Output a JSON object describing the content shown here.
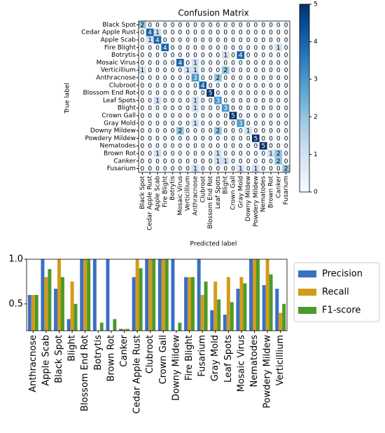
{
  "chart_data": [
    {
      "type": "heatmap",
      "title": "Confusion Matrix",
      "x_label": "Predicted label",
      "y_label": "True label",
      "categories": [
        "Black Spot",
        "Cedar Apple Rust",
        "Apple Scab",
        "Fire Blight",
        "Botrytis",
        "Mosaic Virus",
        "Verticillium",
        "Anthracnose",
        "Clubroot",
        "Blossom End Rot",
        "Leaf Spots",
        "Blight",
        "Crown Gall",
        "Gray Mold",
        "Downy Mildew",
        "Powdery Mildew",
        "Nematodes",
        "Brown Rot",
        "Canker",
        "Fusarium"
      ],
      "values": [
        [
          2,
          0,
          0,
          0,
          0,
          0,
          0,
          0,
          0,
          0,
          0,
          0,
          0,
          0,
          0,
          0,
          0,
          0,
          0,
          0
        ],
        [
          0,
          4,
          1,
          0,
          0,
          0,
          0,
          0,
          0,
          0,
          0,
          0,
          0,
          0,
          0,
          0,
          0,
          0,
          0,
          0
        ],
        [
          0,
          1,
          4,
          0,
          0,
          0,
          0,
          0,
          0,
          0,
          0,
          0,
          0,
          0,
          0,
          0,
          0,
          0,
          0,
          0
        ],
        [
          0,
          0,
          0,
          4,
          0,
          0,
          0,
          0,
          0,
          0,
          0,
          0,
          0,
          0,
          0,
          0,
          0,
          0,
          1,
          0
        ],
        [
          0,
          0,
          0,
          0,
          0,
          0,
          0,
          0,
          0,
          0,
          0,
          1,
          0,
          4,
          0,
          0,
          0,
          0,
          0,
          0
        ],
        [
          0,
          0,
          0,
          0,
          0,
          4,
          0,
          1,
          0,
          0,
          0,
          0,
          0,
          0,
          0,
          0,
          0,
          0,
          0,
          0
        ],
        [
          1,
          0,
          0,
          0,
          0,
          0,
          1,
          1,
          0,
          0,
          0,
          2,
          0,
          0,
          0,
          0,
          0,
          0,
          0,
          0
        ],
        [
          0,
          0,
          0,
          0,
          0,
          0,
          0,
          3,
          0,
          0,
          2,
          0,
          0,
          0,
          0,
          0,
          0,
          0,
          0,
          0
        ],
        [
          0,
          0,
          0,
          0,
          0,
          0,
          0,
          0,
          4,
          0,
          0,
          0,
          0,
          0,
          0,
          0,
          0,
          0,
          0,
          0
        ],
        [
          0,
          0,
          0,
          0,
          0,
          0,
          0,
          0,
          0,
          5,
          0,
          0,
          0,
          0,
          0,
          0,
          0,
          0,
          0,
          0
        ],
        [
          0,
          0,
          1,
          0,
          0,
          0,
          0,
          1,
          0,
          0,
          3,
          0,
          0,
          0,
          0,
          0,
          0,
          0,
          0,
          0
        ],
        [
          0,
          0,
          0,
          0,
          0,
          0,
          0,
          1,
          0,
          0,
          0,
          3,
          0,
          0,
          0,
          0,
          0,
          0,
          0,
          0
        ],
        [
          0,
          0,
          0,
          0,
          0,
          0,
          0,
          0,
          0,
          0,
          0,
          0,
          5,
          0,
          0,
          0,
          0,
          0,
          0,
          0
        ],
        [
          0,
          0,
          0,
          0,
          0,
          0,
          0,
          1,
          0,
          0,
          0,
          0,
          0,
          3,
          0,
          0,
          0,
          0,
          0,
          0
        ],
        [
          0,
          0,
          0,
          0,
          0,
          2,
          0,
          0,
          0,
          0,
          2,
          0,
          0,
          0,
          1,
          0,
          0,
          0,
          0,
          0
        ],
        [
          0,
          0,
          0,
          0,
          0,
          0,
          0,
          0,
          0,
          0,
          0,
          0,
          0,
          0,
          0,
          5,
          0,
          0,
          0,
          0
        ],
        [
          0,
          0,
          0,
          0,
          0,
          0,
          0,
          0,
          0,
          0,
          0,
          0,
          0,
          0,
          0,
          0,
          5,
          0,
          0,
          0
        ],
        [
          0,
          0,
          1,
          0,
          0,
          0,
          0,
          0,
          0,
          0,
          1,
          0,
          0,
          0,
          0,
          0,
          0,
          1,
          2,
          0
        ],
        [
          0,
          0,
          0,
          0,
          0,
          0,
          0,
          0,
          0,
          0,
          1,
          1,
          0,
          0,
          0,
          0,
          0,
          0,
          2,
          0
        ],
        [
          0,
          0,
          0,
          0,
          0,
          0,
          0,
          1,
          0,
          0,
          0,
          0,
          0,
          1,
          0,
          1,
          0,
          0,
          0,
          2
        ]
      ],
      "colormap": [
        "#f7fbff",
        "#deebf7",
        "#c6dbef",
        "#9ecae1",
        "#6baed6",
        "#4292c6",
        "#2171b5",
        "#08519c",
        "#08306b"
      ],
      "clim": [
        0,
        5
      ],
      "cticks": [
        0,
        1,
        2,
        3,
        4,
        5
      ]
    },
    {
      "type": "bar",
      "categories": [
        "Anthracnose",
        "Apple Scab",
        "Black Spot",
        "Blight",
        "Blossom End Rot",
        "Botrytis",
        "Brown Rot",
        "Canker",
        "Cedar Apple Rust",
        "Clubroot",
        "Crown Gall",
        "Downy Mildew",
        "Fire Blight",
        "Fusarium",
        "Gray Mold",
        "Leaf Spots",
        "Mosaic Virus",
        "Nematodes",
        "Powdery Mildew",
        "Verticillium"
      ],
      "series": [
        {
          "name": "Precision",
          "color": "#3a6fc4",
          "values": [
            0.6,
            1.0,
            0.67,
            0.33,
            1.0,
            1.0,
            1.0,
            0.22,
            0.8,
            1.0,
            1.0,
            1.0,
            0.8,
            1.0,
            0.43,
            0.38,
            0.67,
            1.0,
            0.71,
            0.67
          ]
        },
        {
          "name": "Recall",
          "color": "#d49a1a",
          "values": [
            0.6,
            0.8,
            1.0,
            0.75,
            1.0,
            0.17,
            0.2,
            0.22,
            1.0,
            1.0,
            1.0,
            0.17,
            0.8,
            0.6,
            0.75,
            0.8,
            0.8,
            1.0,
            1.0,
            0.4
          ]
        },
        {
          "name": "F1-score",
          "color": "#4c9a2a",
          "values": [
            0.6,
            0.89,
            0.8,
            0.5,
            1.0,
            0.29,
            0.33,
            0.22,
            0.9,
            1.0,
            1.0,
            0.29,
            0.8,
            0.75,
            0.55,
            0.52,
            0.73,
            1.0,
            0.83,
            0.5
          ]
        }
      ],
      "ylim": [
        0.2,
        1.0
      ],
      "yticks": [
        0.5,
        {
          "value": 1.0,
          "label": "1.0"
        }
      ],
      "legend": "right"
    }
  ]
}
